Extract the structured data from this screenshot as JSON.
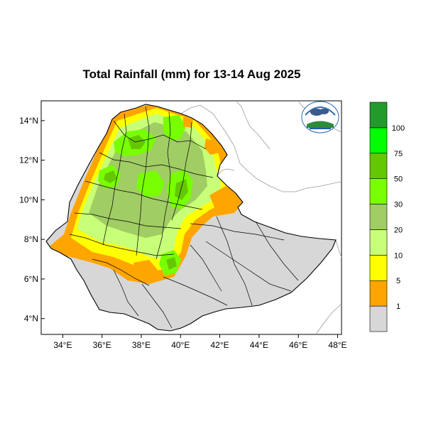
{
  "title": "Total Rainfall (mm) for 13-14 Aug 2025",
  "map": {
    "lat_range": [
      3.2,
      15.0
    ],
    "lon_range": [
      32.9,
      48.2
    ],
    "lat_ticks": [
      {
        "value": 14,
        "label": "14°N"
      },
      {
        "value": 12,
        "label": "12°N"
      },
      {
        "value": 10,
        "label": "10°N"
      },
      {
        "value": 8,
        "label": "8°N"
      },
      {
        "value": 6,
        "label": "6°N"
      },
      {
        "value": 4,
        "label": "4°N"
      }
    ],
    "lon_ticks": [
      {
        "value": 34,
        "label": "34°E"
      },
      {
        "value": 36,
        "label": "36°E"
      },
      {
        "value": 38,
        "label": "38°E"
      },
      {
        "value": 40,
        "label": "40°E"
      },
      {
        "value": 42,
        "label": "42°E"
      },
      {
        "value": 44,
        "label": "44°E"
      },
      {
        "value": 46,
        "label": "46°E"
      },
      {
        "value": 48,
        "label": "48°E"
      }
    ]
  },
  "legend": {
    "colors": [
      "#d7d7d7",
      "#ffa500",
      "#ffff00",
      "#c8ff78",
      "#a0cd64",
      "#78ff00",
      "#64c800",
      "#00ff00",
      "#229a2c"
    ],
    "labels": [
      "1",
      "5",
      "10",
      "20",
      "30",
      "50",
      "75",
      "100"
    ]
  },
  "logo": {
    "icon": "ethiopian-meteorology-institute-logo"
  }
}
